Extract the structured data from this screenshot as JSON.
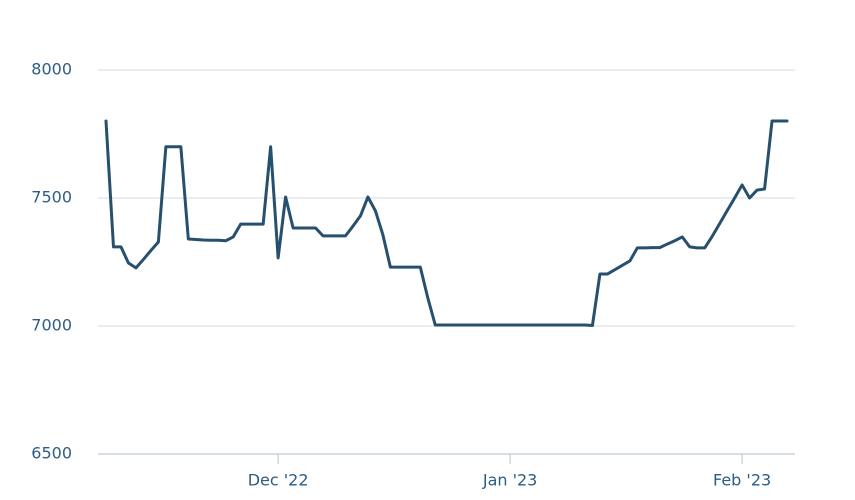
{
  "chart_data": {
    "type": "line",
    "categories": [
      null,
      null,
      null,
      null,
      null,
      null,
      null,
      null,
      null,
      null,
      null,
      null,
      null,
      null,
      null,
      null,
      null,
      null,
      null,
      null,
      null,
      null,
      null,
      "Dec '22",
      null,
      null,
      null,
      null,
      null,
      null,
      null,
      null,
      null,
      null,
      null,
      null,
      null,
      null,
      null,
      null,
      null,
      null,
      null,
      null,
      null,
      null,
      null,
      null,
      null,
      null,
      null,
      null,
      null,
      null,
      "Jan '23",
      null,
      null,
      null,
      null,
      null,
      null,
      null,
      null,
      null,
      null,
      null,
      null,
      null,
      null,
      null,
      null,
      null,
      null,
      null,
      null,
      null,
      null,
      null,
      null,
      null,
      null,
      null,
      null,
      null,
      null,
      "Feb '23",
      null,
      null,
      null,
      null,
      null,
      null
    ],
    "values": [
      7801,
      7309,
      7309,
      7246,
      7227,
      7260,
      7295,
      7328,
      7700,
      7700,
      7700,
      7340,
      7338,
      7336,
      7335,
      7335,
      7333,
      7348,
      7398,
      7398,
      7398,
      7398,
      7700,
      7266,
      7504,
      7383,
      7383,
      7383,
      7383,
      7352,
      7352,
      7352,
      7352,
      7390,
      7430,
      7504,
      7450,
      7356,
      7230,
      7230,
      7230,
      7230,
      7230,
      7110,
      7004,
      7004,
      7004,
      7004,
      7004,
      7004,
      7004,
      7004,
      7004,
      7004,
      7004,
      7004,
      7004,
      7004,
      7004,
      7004,
      7004,
      7004,
      7004,
      7004,
      7004,
      7002,
      7203,
      7203,
      7220,
      7237,
      7254,
      7305,
      7305,
      7306,
      7306,
      7320,
      7333,
      7348,
      7309,
      7305,
      7305,
      7350,
      7400,
      7450,
      7500,
      7551,
      7500,
      7531,
      7535,
      7801,
      7801,
      7801
    ],
    "color": "#27506f",
    "ylim": [
      6500,
      8000
    ],
    "yticks": [
      6500,
      7000,
      7500,
      8000
    ],
    "grid": true
  }
}
